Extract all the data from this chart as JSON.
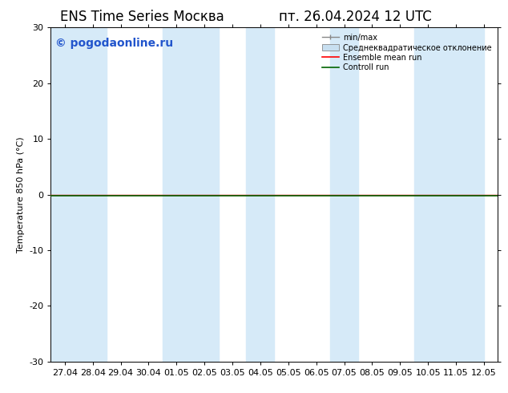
{
  "title_left": "ENS Time Series Москва",
  "title_right": "пт. 26.04.2024 12 UTC",
  "ylabel": "Temperature 850 hPa (°C)",
  "watermark": "© pogodaonline.ru",
  "ylim": [
    -30,
    30
  ],
  "yticks": [
    -30,
    -20,
    -10,
    0,
    10,
    20,
    30
  ],
  "xtick_labels": [
    "27.04",
    "28.04",
    "29.04",
    "30.04",
    "01.05",
    "02.05",
    "03.05",
    "04.05",
    "05.05",
    "06.05",
    "07.05",
    "08.05",
    "09.05",
    "10.05",
    "11.05",
    "12.05"
  ],
  "background_color": "#ffffff",
  "plot_bg_color": "#ffffff",
  "shaded_band_color": "#d6eaf8",
  "shaded_columns": [
    0,
    1,
    4,
    5,
    7,
    8,
    10,
    11,
    13,
    14
  ],
  "line_color_ensemble": "#ff0000",
  "line_color_control": "#006400",
  "legend_labels": [
    "min/max",
    "Среднеквадратическое отклонение",
    "Ensemble mean run",
    "Controll run"
  ],
  "shaded_band_color_legend": "#c8dff0",
  "title_fontsize": 12,
  "axis_fontsize": 8,
  "watermark_fontsize": 10,
  "watermark_color": "#2255cc",
  "figsize": [
    6.34,
    4.9
  ],
  "dpi": 100
}
